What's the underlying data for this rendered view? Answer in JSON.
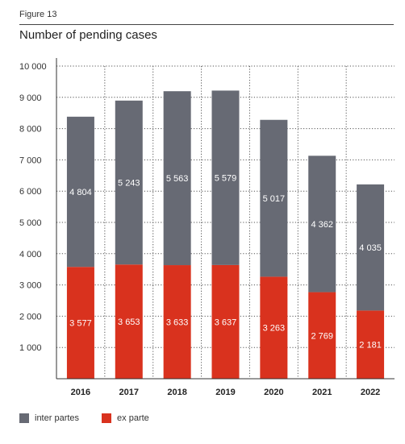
{
  "figure": {
    "label": "Figure 13",
    "title": "Number of pending cases"
  },
  "chart_data": {
    "type": "bar",
    "stacked": true,
    "categories": [
      "2016",
      "2017",
      "2018",
      "2019",
      "2020",
      "2021",
      "2022"
    ],
    "series": [
      {
        "name": "ex parte",
        "color": "#d9321e",
        "values": [
          3577,
          3653,
          3633,
          3637,
          3263,
          2769,
          2181
        ],
        "labels": [
          "3 577",
          "3 653",
          "3 633",
          "3 637",
          "3 263",
          "2 769",
          "2 181"
        ]
      },
      {
        "name": "inter partes",
        "color": "#676a74",
        "values": [
          4804,
          5243,
          5563,
          5579,
          5017,
          4362,
          4035
        ],
        "labels": [
          "4 804",
          "5 243",
          "5 563",
          "5 579",
          "5 017",
          "4 362",
          "4 035"
        ]
      }
    ],
    "ylim": [
      0,
      10000
    ],
    "yticks": [
      1000,
      2000,
      3000,
      4000,
      5000,
      6000,
      7000,
      8000,
      9000,
      10000
    ],
    "ytick_labels": [
      "1 000",
      "2 000",
      "3 000",
      "4 000",
      "5 000",
      "6 000",
      "7 000",
      "8 000",
      "9 000",
      "10 000"
    ],
    "grid": "dotted-both",
    "legend_position": "bottom-left"
  },
  "legend": [
    {
      "label": "inter partes",
      "color": "#676a74"
    },
    {
      "label": "ex parte",
      "color": "#d9321e"
    }
  ]
}
